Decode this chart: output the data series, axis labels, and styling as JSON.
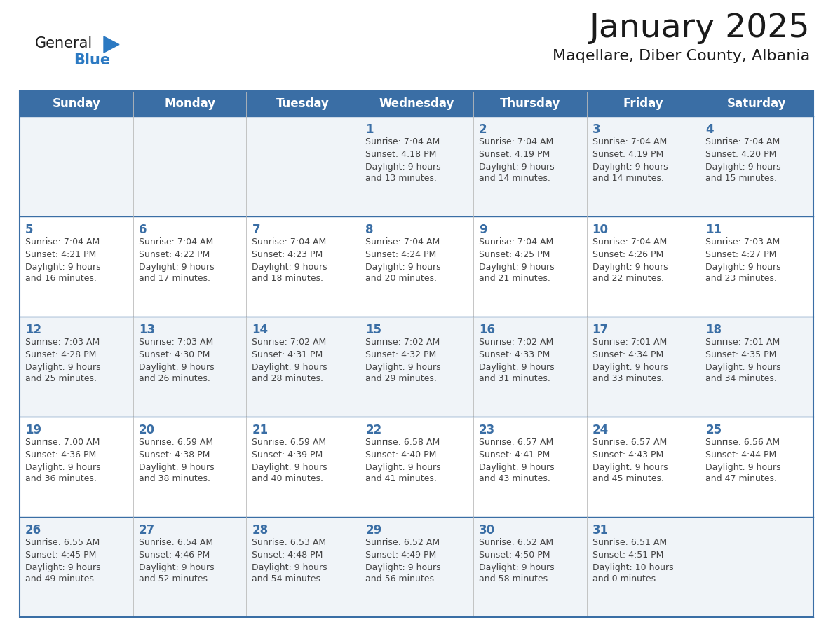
{
  "title": "January 2025",
  "subtitle": "Maqellare, Diber County, Albania",
  "days_of_week": [
    "Sunday",
    "Monday",
    "Tuesday",
    "Wednesday",
    "Thursday",
    "Friday",
    "Saturday"
  ],
  "header_bg": "#3A6EA5",
  "header_text": "#FFFFFF",
  "cell_bg_odd": "#F0F4F8",
  "cell_bg_even": "#FFFFFF",
  "grid_line_color": "#3A6EA5",
  "day_num_color": "#3A6EA5",
  "text_color": "#444444",
  "logo_general_color": "#1a1a1a",
  "logo_blue_color": "#2B79C2",
  "title_color": "#1a1a1a",
  "subtitle_color": "#1a1a1a",
  "calendar_data": [
    [
      null,
      null,
      null,
      {
        "day": 1,
        "sunrise": "7:04 AM",
        "sunset": "4:18 PM",
        "daylight": "9 hours and 13 minutes"
      },
      {
        "day": 2,
        "sunrise": "7:04 AM",
        "sunset": "4:19 PM",
        "daylight": "9 hours and 14 minutes"
      },
      {
        "day": 3,
        "sunrise": "7:04 AM",
        "sunset": "4:19 PM",
        "daylight": "9 hours and 14 minutes"
      },
      {
        "day": 4,
        "sunrise": "7:04 AM",
        "sunset": "4:20 PM",
        "daylight": "9 hours and 15 minutes"
      }
    ],
    [
      {
        "day": 5,
        "sunrise": "7:04 AM",
        "sunset": "4:21 PM",
        "daylight": "9 hours and 16 minutes"
      },
      {
        "day": 6,
        "sunrise": "7:04 AM",
        "sunset": "4:22 PM",
        "daylight": "9 hours and 17 minutes"
      },
      {
        "day": 7,
        "sunrise": "7:04 AM",
        "sunset": "4:23 PM",
        "daylight": "9 hours and 18 minutes"
      },
      {
        "day": 8,
        "sunrise": "7:04 AM",
        "sunset": "4:24 PM",
        "daylight": "9 hours and 20 minutes"
      },
      {
        "day": 9,
        "sunrise": "7:04 AM",
        "sunset": "4:25 PM",
        "daylight": "9 hours and 21 minutes"
      },
      {
        "day": 10,
        "sunrise": "7:04 AM",
        "sunset": "4:26 PM",
        "daylight": "9 hours and 22 minutes"
      },
      {
        "day": 11,
        "sunrise": "7:03 AM",
        "sunset": "4:27 PM",
        "daylight": "9 hours and 23 minutes"
      }
    ],
    [
      {
        "day": 12,
        "sunrise": "7:03 AM",
        "sunset": "4:28 PM",
        "daylight": "9 hours and 25 minutes"
      },
      {
        "day": 13,
        "sunrise": "7:03 AM",
        "sunset": "4:30 PM",
        "daylight": "9 hours and 26 minutes"
      },
      {
        "day": 14,
        "sunrise": "7:02 AM",
        "sunset": "4:31 PM",
        "daylight": "9 hours and 28 minutes"
      },
      {
        "day": 15,
        "sunrise": "7:02 AM",
        "sunset": "4:32 PM",
        "daylight": "9 hours and 29 minutes"
      },
      {
        "day": 16,
        "sunrise": "7:02 AM",
        "sunset": "4:33 PM",
        "daylight": "9 hours and 31 minutes"
      },
      {
        "day": 17,
        "sunrise": "7:01 AM",
        "sunset": "4:34 PM",
        "daylight": "9 hours and 33 minutes"
      },
      {
        "day": 18,
        "sunrise": "7:01 AM",
        "sunset": "4:35 PM",
        "daylight": "9 hours and 34 minutes"
      }
    ],
    [
      {
        "day": 19,
        "sunrise": "7:00 AM",
        "sunset": "4:36 PM",
        "daylight": "9 hours and 36 minutes"
      },
      {
        "day": 20,
        "sunrise": "6:59 AM",
        "sunset": "4:38 PM",
        "daylight": "9 hours and 38 minutes"
      },
      {
        "day": 21,
        "sunrise": "6:59 AM",
        "sunset": "4:39 PM",
        "daylight": "9 hours and 40 minutes"
      },
      {
        "day": 22,
        "sunrise": "6:58 AM",
        "sunset": "4:40 PM",
        "daylight": "9 hours and 41 minutes"
      },
      {
        "day": 23,
        "sunrise": "6:57 AM",
        "sunset": "4:41 PM",
        "daylight": "9 hours and 43 minutes"
      },
      {
        "day": 24,
        "sunrise": "6:57 AM",
        "sunset": "4:43 PM",
        "daylight": "9 hours and 45 minutes"
      },
      {
        "day": 25,
        "sunrise": "6:56 AM",
        "sunset": "4:44 PM",
        "daylight": "9 hours and 47 minutes"
      }
    ],
    [
      {
        "day": 26,
        "sunrise": "6:55 AM",
        "sunset": "4:45 PM",
        "daylight": "9 hours and 49 minutes"
      },
      {
        "day": 27,
        "sunrise": "6:54 AM",
        "sunset": "4:46 PM",
        "daylight": "9 hours and 52 minutes"
      },
      {
        "day": 28,
        "sunrise": "6:53 AM",
        "sunset": "4:48 PM",
        "daylight": "9 hours and 54 minutes"
      },
      {
        "day": 29,
        "sunrise": "6:52 AM",
        "sunset": "4:49 PM",
        "daylight": "9 hours and 56 minutes"
      },
      {
        "day": 30,
        "sunrise": "6:52 AM",
        "sunset": "4:50 PM",
        "daylight": "9 hours and 58 minutes"
      },
      {
        "day": 31,
        "sunrise": "6:51 AM",
        "sunset": "4:51 PM",
        "daylight": "10 hours and 0 minutes"
      },
      null
    ]
  ]
}
